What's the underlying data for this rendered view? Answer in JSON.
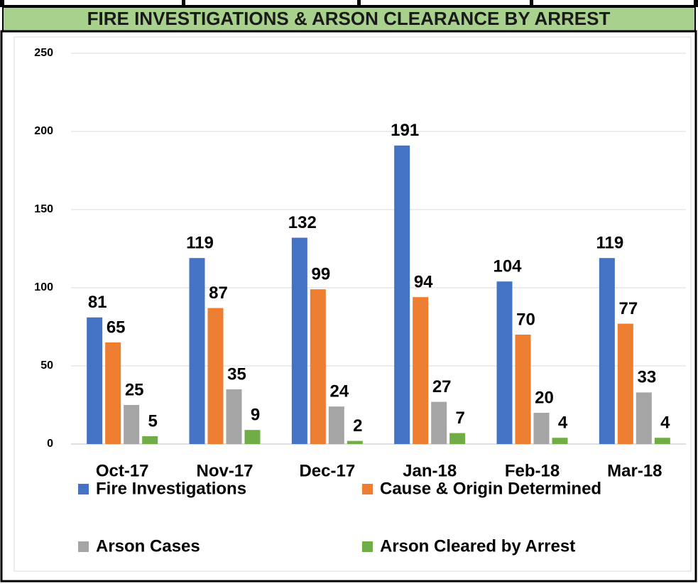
{
  "chart_data": {
    "type": "bar",
    "title": "FIRE INVESTIGATIONS & ARSON CLEARANCE BY ARREST",
    "categories": [
      "Oct-17",
      "Nov-17",
      "Dec-17",
      "Jan-18",
      "Feb-18",
      "Mar-18"
    ],
    "series": [
      {
        "name": "Fire Investigations",
        "color": "#4472c4",
        "values": [
          81,
          119,
          132,
          191,
          104,
          119
        ]
      },
      {
        "name": "Cause & Origin Determined",
        "color": "#ed7d31",
        "values": [
          65,
          87,
          99,
          94,
          70,
          77
        ]
      },
      {
        "name": "Arson Cases",
        "color": "#a5a5a5",
        "values": [
          25,
          35,
          24,
          27,
          20,
          33
        ]
      },
      {
        "name": "Arson Cleared by Arrest",
        "color": "#70ad47",
        "values": [
          5,
          9,
          2,
          7,
          4,
          4
        ]
      }
    ],
    "ylim": [
      0,
      250
    ],
    "yticks": [
      0,
      50,
      100,
      150,
      200,
      250
    ],
    "grid": true,
    "legend": "bottom"
  }
}
